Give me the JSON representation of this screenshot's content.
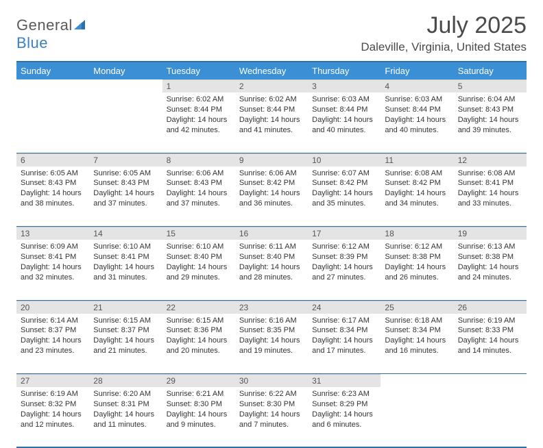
{
  "logo": {
    "word1": "General",
    "word2": "Blue"
  },
  "title": "July 2025",
  "location": "Daleville, Virginia, United States",
  "day_headers": [
    "Sunday",
    "Monday",
    "Tuesday",
    "Wednesday",
    "Thursday",
    "Friday",
    "Saturday"
  ],
  "colors": {
    "header_bg": "#3b8fd4",
    "header_border": "#2d6fa8",
    "daynum_bg": "#e4e4e4",
    "logo_gray": "#5a5a5a",
    "logo_blue": "#3b7fc4",
    "text": "#333333"
  },
  "weeks": [
    [
      {
        "empty": true
      },
      {
        "empty": true
      },
      {
        "n": "1",
        "sunrise": "Sunrise: 6:02 AM",
        "sunset": "Sunset: 8:44 PM",
        "day1": "Daylight: 14 hours",
        "day2": "and 42 minutes."
      },
      {
        "n": "2",
        "sunrise": "Sunrise: 6:02 AM",
        "sunset": "Sunset: 8:44 PM",
        "day1": "Daylight: 14 hours",
        "day2": "and 41 minutes."
      },
      {
        "n": "3",
        "sunrise": "Sunrise: 6:03 AM",
        "sunset": "Sunset: 8:44 PM",
        "day1": "Daylight: 14 hours",
        "day2": "and 40 minutes."
      },
      {
        "n": "4",
        "sunrise": "Sunrise: 6:03 AM",
        "sunset": "Sunset: 8:44 PM",
        "day1": "Daylight: 14 hours",
        "day2": "and 40 minutes."
      },
      {
        "n": "5",
        "sunrise": "Sunrise: 6:04 AM",
        "sunset": "Sunset: 8:43 PM",
        "day1": "Daylight: 14 hours",
        "day2": "and 39 minutes."
      }
    ],
    [
      {
        "n": "6",
        "sunrise": "Sunrise: 6:05 AM",
        "sunset": "Sunset: 8:43 PM",
        "day1": "Daylight: 14 hours",
        "day2": "and 38 minutes."
      },
      {
        "n": "7",
        "sunrise": "Sunrise: 6:05 AM",
        "sunset": "Sunset: 8:43 PM",
        "day1": "Daylight: 14 hours",
        "day2": "and 37 minutes."
      },
      {
        "n": "8",
        "sunrise": "Sunrise: 6:06 AM",
        "sunset": "Sunset: 8:43 PM",
        "day1": "Daylight: 14 hours",
        "day2": "and 37 minutes."
      },
      {
        "n": "9",
        "sunrise": "Sunrise: 6:06 AM",
        "sunset": "Sunset: 8:42 PM",
        "day1": "Daylight: 14 hours",
        "day2": "and 36 minutes."
      },
      {
        "n": "10",
        "sunrise": "Sunrise: 6:07 AM",
        "sunset": "Sunset: 8:42 PM",
        "day1": "Daylight: 14 hours",
        "day2": "and 35 minutes."
      },
      {
        "n": "11",
        "sunrise": "Sunrise: 6:08 AM",
        "sunset": "Sunset: 8:42 PM",
        "day1": "Daylight: 14 hours",
        "day2": "and 34 minutes."
      },
      {
        "n": "12",
        "sunrise": "Sunrise: 6:08 AM",
        "sunset": "Sunset: 8:41 PM",
        "day1": "Daylight: 14 hours",
        "day2": "and 33 minutes."
      }
    ],
    [
      {
        "n": "13",
        "sunrise": "Sunrise: 6:09 AM",
        "sunset": "Sunset: 8:41 PM",
        "day1": "Daylight: 14 hours",
        "day2": "and 32 minutes."
      },
      {
        "n": "14",
        "sunrise": "Sunrise: 6:10 AM",
        "sunset": "Sunset: 8:41 PM",
        "day1": "Daylight: 14 hours",
        "day2": "and 31 minutes."
      },
      {
        "n": "15",
        "sunrise": "Sunrise: 6:10 AM",
        "sunset": "Sunset: 8:40 PM",
        "day1": "Daylight: 14 hours",
        "day2": "and 29 minutes."
      },
      {
        "n": "16",
        "sunrise": "Sunrise: 6:11 AM",
        "sunset": "Sunset: 8:40 PM",
        "day1": "Daylight: 14 hours",
        "day2": "and 28 minutes."
      },
      {
        "n": "17",
        "sunrise": "Sunrise: 6:12 AM",
        "sunset": "Sunset: 8:39 PM",
        "day1": "Daylight: 14 hours",
        "day2": "and 27 minutes."
      },
      {
        "n": "18",
        "sunrise": "Sunrise: 6:12 AM",
        "sunset": "Sunset: 8:38 PM",
        "day1": "Daylight: 14 hours",
        "day2": "and 26 minutes."
      },
      {
        "n": "19",
        "sunrise": "Sunrise: 6:13 AM",
        "sunset": "Sunset: 8:38 PM",
        "day1": "Daylight: 14 hours",
        "day2": "and 24 minutes."
      }
    ],
    [
      {
        "n": "20",
        "sunrise": "Sunrise: 6:14 AM",
        "sunset": "Sunset: 8:37 PM",
        "day1": "Daylight: 14 hours",
        "day2": "and 23 minutes."
      },
      {
        "n": "21",
        "sunrise": "Sunrise: 6:15 AM",
        "sunset": "Sunset: 8:37 PM",
        "day1": "Daylight: 14 hours",
        "day2": "and 21 minutes."
      },
      {
        "n": "22",
        "sunrise": "Sunrise: 6:15 AM",
        "sunset": "Sunset: 8:36 PM",
        "day1": "Daylight: 14 hours",
        "day2": "and 20 minutes."
      },
      {
        "n": "23",
        "sunrise": "Sunrise: 6:16 AM",
        "sunset": "Sunset: 8:35 PM",
        "day1": "Daylight: 14 hours",
        "day2": "and 19 minutes."
      },
      {
        "n": "24",
        "sunrise": "Sunrise: 6:17 AM",
        "sunset": "Sunset: 8:34 PM",
        "day1": "Daylight: 14 hours",
        "day2": "and 17 minutes."
      },
      {
        "n": "25",
        "sunrise": "Sunrise: 6:18 AM",
        "sunset": "Sunset: 8:34 PM",
        "day1": "Daylight: 14 hours",
        "day2": "and 16 minutes."
      },
      {
        "n": "26",
        "sunrise": "Sunrise: 6:19 AM",
        "sunset": "Sunset: 8:33 PM",
        "day1": "Daylight: 14 hours",
        "day2": "and 14 minutes."
      }
    ],
    [
      {
        "n": "27",
        "sunrise": "Sunrise: 6:19 AM",
        "sunset": "Sunset: 8:32 PM",
        "day1": "Daylight: 14 hours",
        "day2": "and 12 minutes."
      },
      {
        "n": "28",
        "sunrise": "Sunrise: 6:20 AM",
        "sunset": "Sunset: 8:31 PM",
        "day1": "Daylight: 14 hours",
        "day2": "and 11 minutes."
      },
      {
        "n": "29",
        "sunrise": "Sunrise: 6:21 AM",
        "sunset": "Sunset: 8:30 PM",
        "day1": "Daylight: 14 hours",
        "day2": "and 9 minutes."
      },
      {
        "n": "30",
        "sunrise": "Sunrise: 6:22 AM",
        "sunset": "Sunset: 8:30 PM",
        "day1": "Daylight: 14 hours",
        "day2": "and 7 minutes."
      },
      {
        "n": "31",
        "sunrise": "Sunrise: 6:23 AM",
        "sunset": "Sunset: 8:29 PM",
        "day1": "Daylight: 14 hours",
        "day2": "and 6 minutes."
      },
      {
        "empty": true
      },
      {
        "empty": true
      }
    ]
  ]
}
